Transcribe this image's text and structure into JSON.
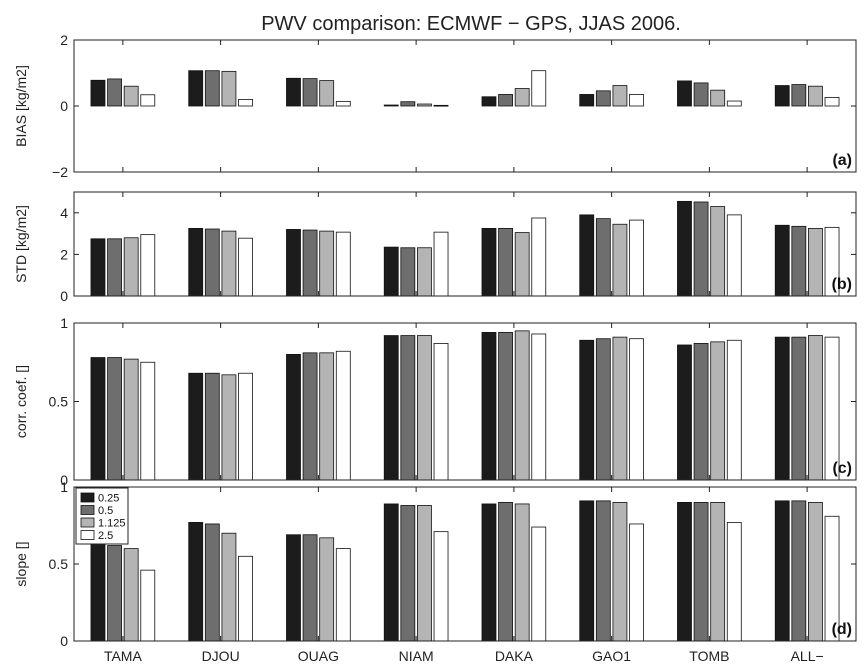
{
  "chart_data": {
    "type": "bar",
    "title": "PWV comparison: ECMWF − GPS, JJAS 2006.",
    "categories": [
      "TAMA",
      "DJOU",
      "OUAG",
      "NIAM",
      "DAKA",
      "GAO1",
      "TOMB",
      "ALL−"
    ],
    "legend": {
      "placement": "top-left of panel (d)",
      "entries": [
        "0.25",
        "0.5",
        "1.125",
        "2.5"
      ]
    },
    "series_colors": [
      "#1c1c1c",
      "#6e6e6e",
      "#b4b4b4",
      "#ffffff"
    ],
    "panels": [
      {
        "label": "(a)",
        "ylabel": "BIAS [kg/m2]",
        "ylim": [
          -2,
          2
        ],
        "yticks": [
          "-2",
          "0",
          "2"
        ],
        "yticks_values": [
          -2,
          0,
          2
        ],
        "series": [
          {
            "name": "0.25",
            "values": [
              0.78,
              1.07,
              0.84,
              0.03,
              0.28,
              0.35,
              0.76,
              0.62
            ]
          },
          {
            "name": "0.5",
            "values": [
              0.82,
              1.07,
              0.83,
              0.13,
              0.35,
              0.46,
              0.7,
              0.65
            ]
          },
          {
            "name": "1.125",
            "values": [
              0.6,
              1.05,
              0.77,
              0.06,
              0.53,
              0.62,
              0.48,
              0.6
            ]
          },
          {
            "name": "2.5",
            "values": [
              0.34,
              0.2,
              0.14,
              0.02,
              1.07,
              0.35,
              0.15,
              0.26
            ]
          }
        ]
      },
      {
        "label": "(b)",
        "ylabel": "STD [kg/m2]",
        "ylim": [
          0,
          5
        ],
        "yticks": [
          "0",
          "2",
          "4"
        ],
        "yticks_values": [
          0,
          2,
          4
        ],
        "series": [
          {
            "name": "0.25",
            "values": [
              2.75,
              3.25,
              3.2,
              2.35,
              3.25,
              3.9,
              4.55,
              3.4
            ]
          },
          {
            "name": "0.5",
            "values": [
              2.75,
              3.22,
              3.17,
              2.32,
              3.25,
              3.72,
              4.52,
              3.35
            ]
          },
          {
            "name": "1.125",
            "values": [
              2.8,
              3.12,
              3.12,
              2.32,
              3.05,
              3.45,
              4.3,
              3.25
            ]
          },
          {
            "name": "2.5",
            "values": [
              2.95,
              2.78,
              3.07,
              3.07,
              3.75,
              3.65,
              3.9,
              3.3
            ]
          }
        ]
      },
      {
        "label": "(c)",
        "ylabel": "corr. coef. []",
        "ylim": [
          0,
          1
        ],
        "yticks": [
          "0",
          "0.5",
          "1"
        ],
        "yticks_values": [
          0,
          0.5,
          1
        ],
        "series": [
          {
            "name": "0.25",
            "values": [
              0.78,
              0.68,
              0.8,
              0.92,
              0.94,
              0.89,
              0.86,
              0.91
            ]
          },
          {
            "name": "0.5",
            "values": [
              0.78,
              0.68,
              0.81,
              0.92,
              0.94,
              0.9,
              0.87,
              0.91
            ]
          },
          {
            "name": "1.125",
            "values": [
              0.77,
              0.67,
              0.81,
              0.92,
              0.95,
              0.91,
              0.88,
              0.92
            ]
          },
          {
            "name": "2.5",
            "values": [
              0.75,
              0.68,
              0.82,
              0.87,
              0.93,
              0.9,
              0.89,
              0.91
            ]
          }
        ]
      },
      {
        "label": "(d)",
        "ylabel": "slope []",
        "ylim": [
          0,
          1
        ],
        "yticks": [
          "0",
          "0.5",
          "1"
        ],
        "yticks_values": [
          0,
          0.5,
          1
        ],
        "series": [
          {
            "name": "0.25",
            "values": [
              0.72,
              0.77,
              0.69,
              0.89,
              0.89,
              0.91,
              0.9,
              0.91
            ]
          },
          {
            "name": "0.5",
            "values": [
              0.62,
              0.76,
              0.69,
              0.88,
              0.9,
              0.91,
              0.9,
              0.91
            ]
          },
          {
            "name": "1.125",
            "values": [
              0.6,
              0.7,
              0.67,
              0.88,
              0.89,
              0.9,
              0.9,
              0.9
            ]
          },
          {
            "name": "2.5",
            "values": [
              0.46,
              0.55,
              0.6,
              0.71,
              0.74,
              0.76,
              0.77,
              0.81
            ]
          }
        ]
      }
    ]
  }
}
